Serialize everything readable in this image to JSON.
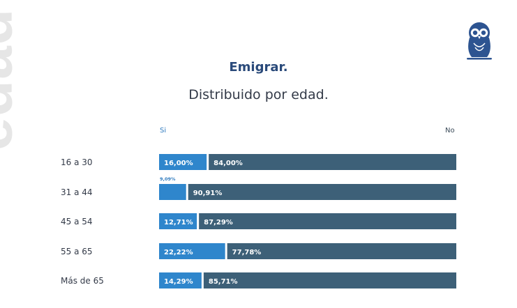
{
  "side_word": "edad",
  "colors": {
    "si": "#2f86cc",
    "no": "#3d6078",
    "title": "#2a4a7a",
    "logo": "#2d5491"
  },
  "chart_data": {
    "type": "bar",
    "orientation": "horizontal",
    "stacked": "100%",
    "title": "Emigrar.",
    "subtitle": "Distribuido por edad.",
    "legend": [
      "Si",
      "No"
    ],
    "categories": [
      "16 a 30",
      "31 a 44",
      "45 a 54",
      "55 a 65",
      "Más de 65"
    ],
    "series": [
      {
        "name": "Si",
        "values": [
          16.0,
          9.09,
          12.71,
          22.22,
          14.29
        ],
        "labels": [
          "16,00%",
          "9,09%",
          "12,71%",
          "22,22%",
          "14,29%"
        ]
      },
      {
        "name": "No",
        "values": [
          84.0,
          90.91,
          87.29,
          77.78,
          85.71
        ],
        "labels": [
          "84,00%",
          "90,91%",
          "87,29%",
          "77,78%",
          "85,71%"
        ]
      }
    ],
    "xlim": [
      0,
      100
    ]
  }
}
